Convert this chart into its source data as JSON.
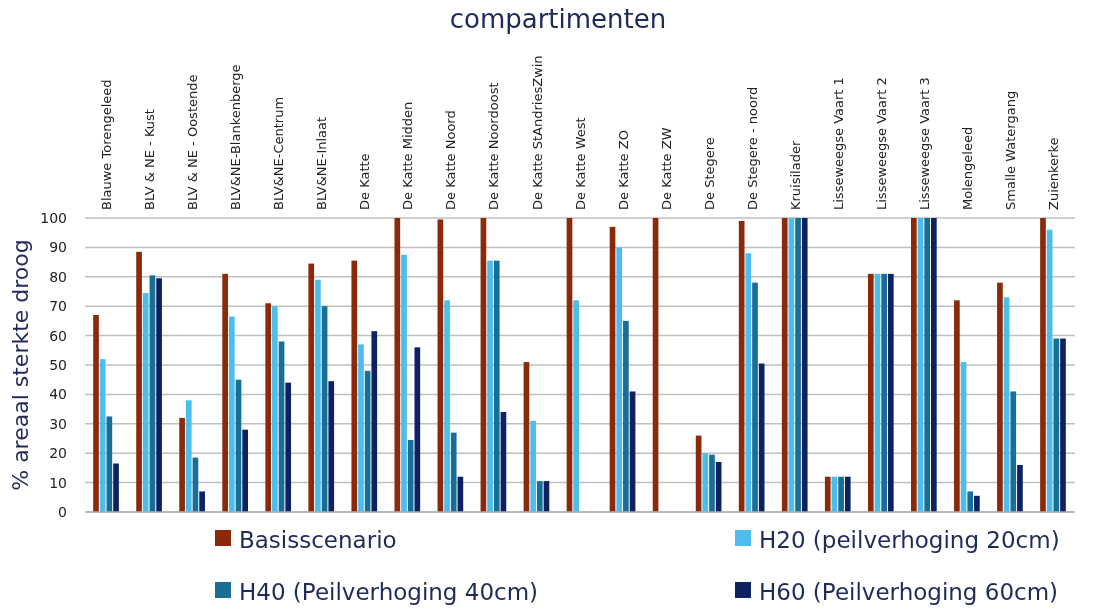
{
  "chart_data": {
    "type": "bar",
    "title": "compartimenten",
    "ylabel": "% areaal sterkte droog",
    "categories": [
      "Blauwe Torengeleed",
      "BLV & NE - Kust",
      "BLV & NE - Oostende",
      "BLV&NE-Blankenberge",
      "BLV&NE-Centrum",
      "BLV&NE-Inlaat",
      "De Katte",
      "De Katte Midden",
      "De Katte Noord",
      "De Katte Noordoost",
      "De Katte StAndriesZwin",
      "De Katte West",
      "De Katte ZO",
      "De Katte ZW",
      "De Stegere",
      "De Stegere - noord",
      "Kruisilader",
      "Lisseweegse Vaart 1",
      "Lisseweegse Vaart 2",
      "Lisseweegse Vaart 3",
      "Molengeleed",
      "Smalle Watergang",
      "Zuienkerke"
    ],
    "series": [
      {
        "name": "Basisscenario",
        "color": "#8b2a0b",
        "values": [
          67,
          88.5,
          32,
          81,
          71,
          84.5,
          85.5,
          100,
          99.5,
          100,
          51,
          100,
          97,
          100,
          26,
          99,
          100,
          12,
          81,
          100,
          72,
          78,
          100
        ]
      },
      {
        "name": "H20 (peilverhoging 20cm)",
        "color": "#4dbded",
        "values": [
          52,
          74.5,
          38,
          66.5,
          70,
          79,
          57,
          87.5,
          72,
          85.5,
          31,
          72,
          90,
          null,
          20,
          88,
          100,
          12,
          81,
          100,
          51,
          73,
          96
        ]
      },
      {
        "name": "H40 (Peilverhoging 40cm)",
        "color": "#176e96",
        "values": [
          32.5,
          80.5,
          18.5,
          45,
          58,
          70,
          48,
          24.5,
          27,
          85.5,
          10.5,
          null,
          65,
          null,
          19.5,
          78,
          100,
          12,
          81,
          100,
          7,
          41,
          59
        ]
      },
      {
        "name": "H60 (Peilverhoging 60cm)",
        "color": "#0e2160",
        "values": [
          16.5,
          79.5,
          7,
          28,
          44,
          44.5,
          61.5,
          56,
          12,
          34,
          10.5,
          null,
          41,
          null,
          17,
          50.5,
          100,
          12,
          81,
          100,
          5.5,
          16,
          59
        ]
      }
    ],
    "ylim": [
      0,
      100
    ],
    "yticks": [
      0,
      10,
      20,
      30,
      40,
      50,
      60,
      70,
      80,
      90,
      100
    ],
    "grid": "y",
    "legend": "bottom"
  }
}
